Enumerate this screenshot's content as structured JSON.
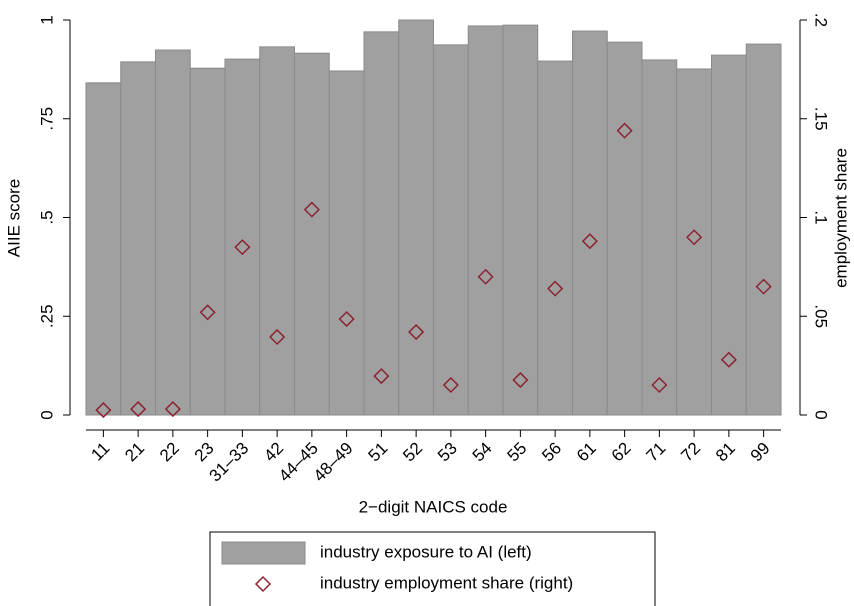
{
  "chart_data": {
    "type": "bar_scatter",
    "x_label": "2−digit NAICS code",
    "y_label": "AIIE score",
    "y2_label": "employment share",
    "categories": [
      "11",
      "21",
      "22",
      "23",
      "31–33",
      "42",
      "44–45",
      "48–49",
      "51",
      "52",
      "53",
      "54",
      "55",
      "56",
      "61",
      "62",
      "71",
      "72",
      "81",
      "99"
    ],
    "series": [
      {
        "name": "industry exposure to AI (left)",
        "type": "bar",
        "color": "#a0a0a0",
        "values": [
          0.841,
          0.894,
          0.924,
          0.878,
          0.901,
          0.932,
          0.916,
          0.871,
          0.97,
          1.0,
          0.937,
          0.985,
          0.987,
          0.896,
          0.972,
          0.944,
          0.899,
          0.876,
          0.911,
          0.939
        ]
      },
      {
        "name": "industry employment share (right)",
        "type": "scatter",
        "axis": "y2",
        "color": "#8b2332",
        "values": [
          0.0025,
          0.003,
          0.003,
          0.052,
          0.085,
          0.0395,
          0.104,
          0.0486,
          0.0197,
          0.042,
          0.0152,
          0.07,
          0.0177,
          0.064,
          0.088,
          0.144,
          0.0152,
          0.09,
          0.028,
          0.065
        ]
      }
    ],
    "ylim": [
      0,
      1
    ],
    "yticks": [
      0,
      {
        "value": 0.25,
        "label": ".25"
      },
      {
        "value": 0.5,
        "label": ".5"
      },
      {
        "value": 0.75,
        "label": ".75"
      },
      1
    ],
    "y2lim": [
      0,
      0.2
    ],
    "y2ticks": [
      0,
      {
        "value": 0.05,
        "label": ".05"
      },
      {
        "value": 0.1,
        "label": ".1"
      },
      {
        "value": 0.15,
        "label": ".15"
      },
      {
        "value": 0.2,
        "label": ".2"
      }
    ],
    "legend": "bottom"
  }
}
